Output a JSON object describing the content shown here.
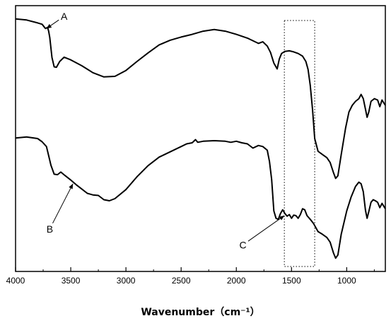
{
  "chart_data": {
    "type": "line",
    "title": "",
    "xlabel": "Wavenumber（cm⁻¹）",
    "ylabel": "",
    "xlim": [
      4000,
      650
    ],
    "x_reversed": true,
    "x_ticks": [
      4000,
      3500,
      3000,
      2500,
      2000,
      1500,
      1000
    ],
    "y_ticks_visible": false,
    "grid": false,
    "legend": "none",
    "line_color": "#000000",
    "highlight_box": {
      "x_from": 1565,
      "x_to": 1290,
      "style": "dotted"
    },
    "series": [
      {
        "points": [
          [
            4000,
            0.95
          ],
          [
            3900,
            0.946
          ],
          [
            3800,
            0.935
          ],
          [
            3760,
            0.93
          ],
          [
            3730,
            0.914
          ],
          [
            3710,
            0.918
          ],
          [
            3700,
            0.904
          ],
          [
            3690,
            0.88
          ],
          [
            3670,
            0.805
          ],
          [
            3650,
            0.77
          ],
          [
            3630,
            0.768
          ],
          [
            3600,
            0.79
          ],
          [
            3560,
            0.806
          ],
          [
            3500,
            0.796
          ],
          [
            3400,
            0.774
          ],
          [
            3300,
            0.748
          ],
          [
            3200,
            0.732
          ],
          [
            3100,
            0.734
          ],
          [
            3000,
            0.756
          ],
          [
            2900,
            0.79
          ],
          [
            2800,
            0.822
          ],
          [
            2700,
            0.852
          ],
          [
            2600,
            0.87
          ],
          [
            2500,
            0.882
          ],
          [
            2400,
            0.892
          ],
          [
            2300,
            0.904
          ],
          [
            2200,
            0.91
          ],
          [
            2100,
            0.904
          ],
          [
            2000,
            0.892
          ],
          [
            1900,
            0.878
          ],
          [
            1850,
            0.868
          ],
          [
            1800,
            0.858
          ],
          [
            1760,
            0.864
          ],
          [
            1720,
            0.848
          ],
          [
            1690,
            0.824
          ],
          [
            1660,
            0.784
          ],
          [
            1630,
            0.762
          ],
          [
            1610,
            0.8
          ],
          [
            1590,
            0.82
          ],
          [
            1560,
            0.828
          ],
          [
            1520,
            0.83
          ],
          [
            1480,
            0.826
          ],
          [
            1440,
            0.82
          ],
          [
            1400,
            0.81
          ],
          [
            1370,
            0.79
          ],
          [
            1350,
            0.76
          ],
          [
            1330,
            0.7
          ],
          [
            1310,
            0.61
          ],
          [
            1290,
            0.5
          ],
          [
            1260,
            0.452
          ],
          [
            1220,
            0.44
          ],
          [
            1180,
            0.428
          ],
          [
            1150,
            0.41
          ],
          [
            1120,
            0.372
          ],
          [
            1100,
            0.35
          ],
          [
            1080,
            0.36
          ],
          [
            1050,
            0.44
          ],
          [
            1010,
            0.54
          ],
          [
            980,
            0.6
          ],
          [
            950,
            0.625
          ],
          [
            920,
            0.64
          ],
          [
            890,
            0.65
          ],
          [
            870,
            0.666
          ],
          [
            850,
            0.65
          ],
          [
            830,
            0.61
          ],
          [
            815,
            0.58
          ],
          [
            800,
            0.6
          ],
          [
            780,
            0.64
          ],
          [
            750,
            0.65
          ],
          [
            720,
            0.645
          ],
          [
            700,
            0.62
          ],
          [
            680,
            0.645
          ],
          [
            650,
            0.625
          ]
        ]
      },
      {
        "points": [
          [
            4000,
            0.502
          ],
          [
            3900,
            0.506
          ],
          [
            3800,
            0.5
          ],
          [
            3760,
            0.488
          ],
          [
            3720,
            0.47
          ],
          [
            3700,
            0.436
          ],
          [
            3680,
            0.4
          ],
          [
            3650,
            0.366
          ],
          [
            3620,
            0.364
          ],
          [
            3590,
            0.374
          ],
          [
            3550,
            0.36
          ],
          [
            3500,
            0.344
          ],
          [
            3450,
            0.326
          ],
          [
            3400,
            0.31
          ],
          [
            3350,
            0.294
          ],
          [
            3300,
            0.288
          ],
          [
            3250,
            0.286
          ],
          [
            3200,
            0.27
          ],
          [
            3150,
            0.266
          ],
          [
            3100,
            0.274
          ],
          [
            3000,
            0.308
          ],
          [
            2900,
            0.356
          ],
          [
            2800,
            0.398
          ],
          [
            2700,
            0.43
          ],
          [
            2600,
            0.45
          ],
          [
            2500,
            0.47
          ],
          [
            2450,
            0.48
          ],
          [
            2400,
            0.484
          ],
          [
            2370,
            0.496
          ],
          [
            2350,
            0.486
          ],
          [
            2300,
            0.49
          ],
          [
            2200,
            0.492
          ],
          [
            2100,
            0.49
          ],
          [
            2050,
            0.486
          ],
          [
            2000,
            0.49
          ],
          [
            1950,
            0.484
          ],
          [
            1900,
            0.48
          ],
          [
            1850,
            0.464
          ],
          [
            1800,
            0.474
          ],
          [
            1760,
            0.47
          ],
          [
            1720,
            0.456
          ],
          [
            1700,
            0.414
          ],
          [
            1680,
            0.346
          ],
          [
            1660,
            0.228
          ],
          [
            1640,
            0.2
          ],
          [
            1620,
            0.196
          ],
          [
            1600,
            0.218
          ],
          [
            1580,
            0.232
          ],
          [
            1560,
            0.218
          ],
          [
            1540,
            0.208
          ],
          [
            1520,
            0.214
          ],
          [
            1500,
            0.2
          ],
          [
            1480,
            0.212
          ],
          [
            1460,
            0.21
          ],
          [
            1440,
            0.2
          ],
          [
            1420,
            0.214
          ],
          [
            1400,
            0.236
          ],
          [
            1380,
            0.232
          ],
          [
            1360,
            0.21
          ],
          [
            1330,
            0.196
          ],
          [
            1300,
            0.18
          ],
          [
            1260,
            0.15
          ],
          [
            1220,
            0.14
          ],
          [
            1180,
            0.128
          ],
          [
            1150,
            0.11
          ],
          [
            1120,
            0.07
          ],
          [
            1100,
            0.05
          ],
          [
            1080,
            0.062
          ],
          [
            1050,
            0.14
          ],
          [
            1000,
            0.228
          ],
          [
            960,
            0.28
          ],
          [
            920,
            0.32
          ],
          [
            890,
            0.336
          ],
          [
            870,
            0.33
          ],
          [
            850,
            0.3
          ],
          [
            830,
            0.23
          ],
          [
            815,
            0.2
          ],
          [
            800,
            0.225
          ],
          [
            780,
            0.26
          ],
          [
            760,
            0.27
          ],
          [
            740,
            0.266
          ],
          [
            720,
            0.26
          ],
          [
            700,
            0.24
          ],
          [
            680,
            0.256
          ],
          [
            650,
            0.236
          ]
        ]
      }
    ],
    "annotations": [
      {
        "label": "A",
        "x": 3720,
        "y": 0.914,
        "text_x": 3560,
        "text_y": 0.96
      },
      {
        "label": "B",
        "x": 3480,
        "y": 0.33,
        "text_x": 3690,
        "text_y": 0.16
      },
      {
        "label": "C",
        "x": 1565,
        "y": 0.21,
        "text_x": 1940,
        "text_y": 0.1
      }
    ]
  }
}
